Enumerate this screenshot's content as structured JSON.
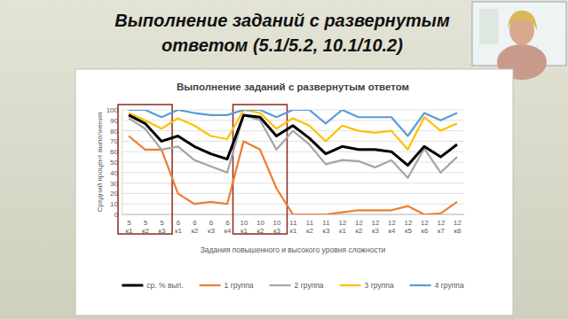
{
  "slide_title": [
    "Выполнение заданий с развернутым",
    "ответом (5.1/5.2, 10.1/10.2)"
  ],
  "chart_data": {
    "type": "line",
    "title": "Выполнение заданий с развернутым ответом",
    "x_label": "Задания повышенного и высокого уровня сложности",
    "y_label": "Средний процент выполнения",
    "categories": [
      "5 к1",
      "5 к2",
      "5 к3",
      "6 к1",
      "6 к2",
      "6 к3",
      "6 к4",
      "10 к1",
      "10 к2",
      "10 к3",
      "11 к1",
      "11 к2",
      "11 к3",
      "12 к1",
      "12 к2",
      "12 к3",
      "12 к4",
      "12 к5",
      "12 к6",
      "12 к7",
      "12 к8"
    ],
    "series": [
      {
        "name": "ср. % вып.",
        "color": "#000000",
        "values": [
          95,
          87,
          70,
          75,
          65,
          58,
          53,
          95,
          93,
          75,
          85,
          73,
          58,
          65,
          62,
          62,
          60,
          47,
          65,
          55,
          67
        ]
      },
      {
        "name": "1 группа",
        "color": "#ed7d31",
        "values": [
          75,
          62,
          62,
          20,
          10,
          12,
          10,
          70,
          62,
          25,
          0,
          0,
          0,
          2,
          4,
          4,
          4,
          8,
          0,
          1,
          12
        ]
      },
      {
        "name": "2 группа",
        "color": "#a5a5a5",
        "values": [
          92,
          82,
          62,
          65,
          52,
          46,
          40,
          95,
          90,
          62,
          80,
          67,
          48,
          52,
          51,
          45,
          52,
          35,
          63,
          40,
          55
        ]
      },
      {
        "name": "3 группа",
        "color": "#ffc000",
        "values": [
          97,
          90,
          82,
          92,
          85,
          75,
          72,
          100,
          97,
          82,
          92,
          85,
          70,
          85,
          80,
          78,
          80,
          62,
          93,
          80,
          87
        ]
      },
      {
        "name": "4 группа",
        "color": "#5b9bd5",
        "values": [
          100,
          100,
          93,
          100,
          97,
          95,
          95,
          100,
          100,
          93,
          100,
          100,
          87,
          100,
          93,
          93,
          93,
          75,
          97,
          90,
          97
        ]
      }
    ],
    "ylim": [
      0,
      100
    ],
    "yticks": [
      0,
      10,
      20,
      30,
      40,
      50,
      60,
      70,
      80,
      90,
      100
    ],
    "grid": true,
    "legend": "bottom"
  }
}
